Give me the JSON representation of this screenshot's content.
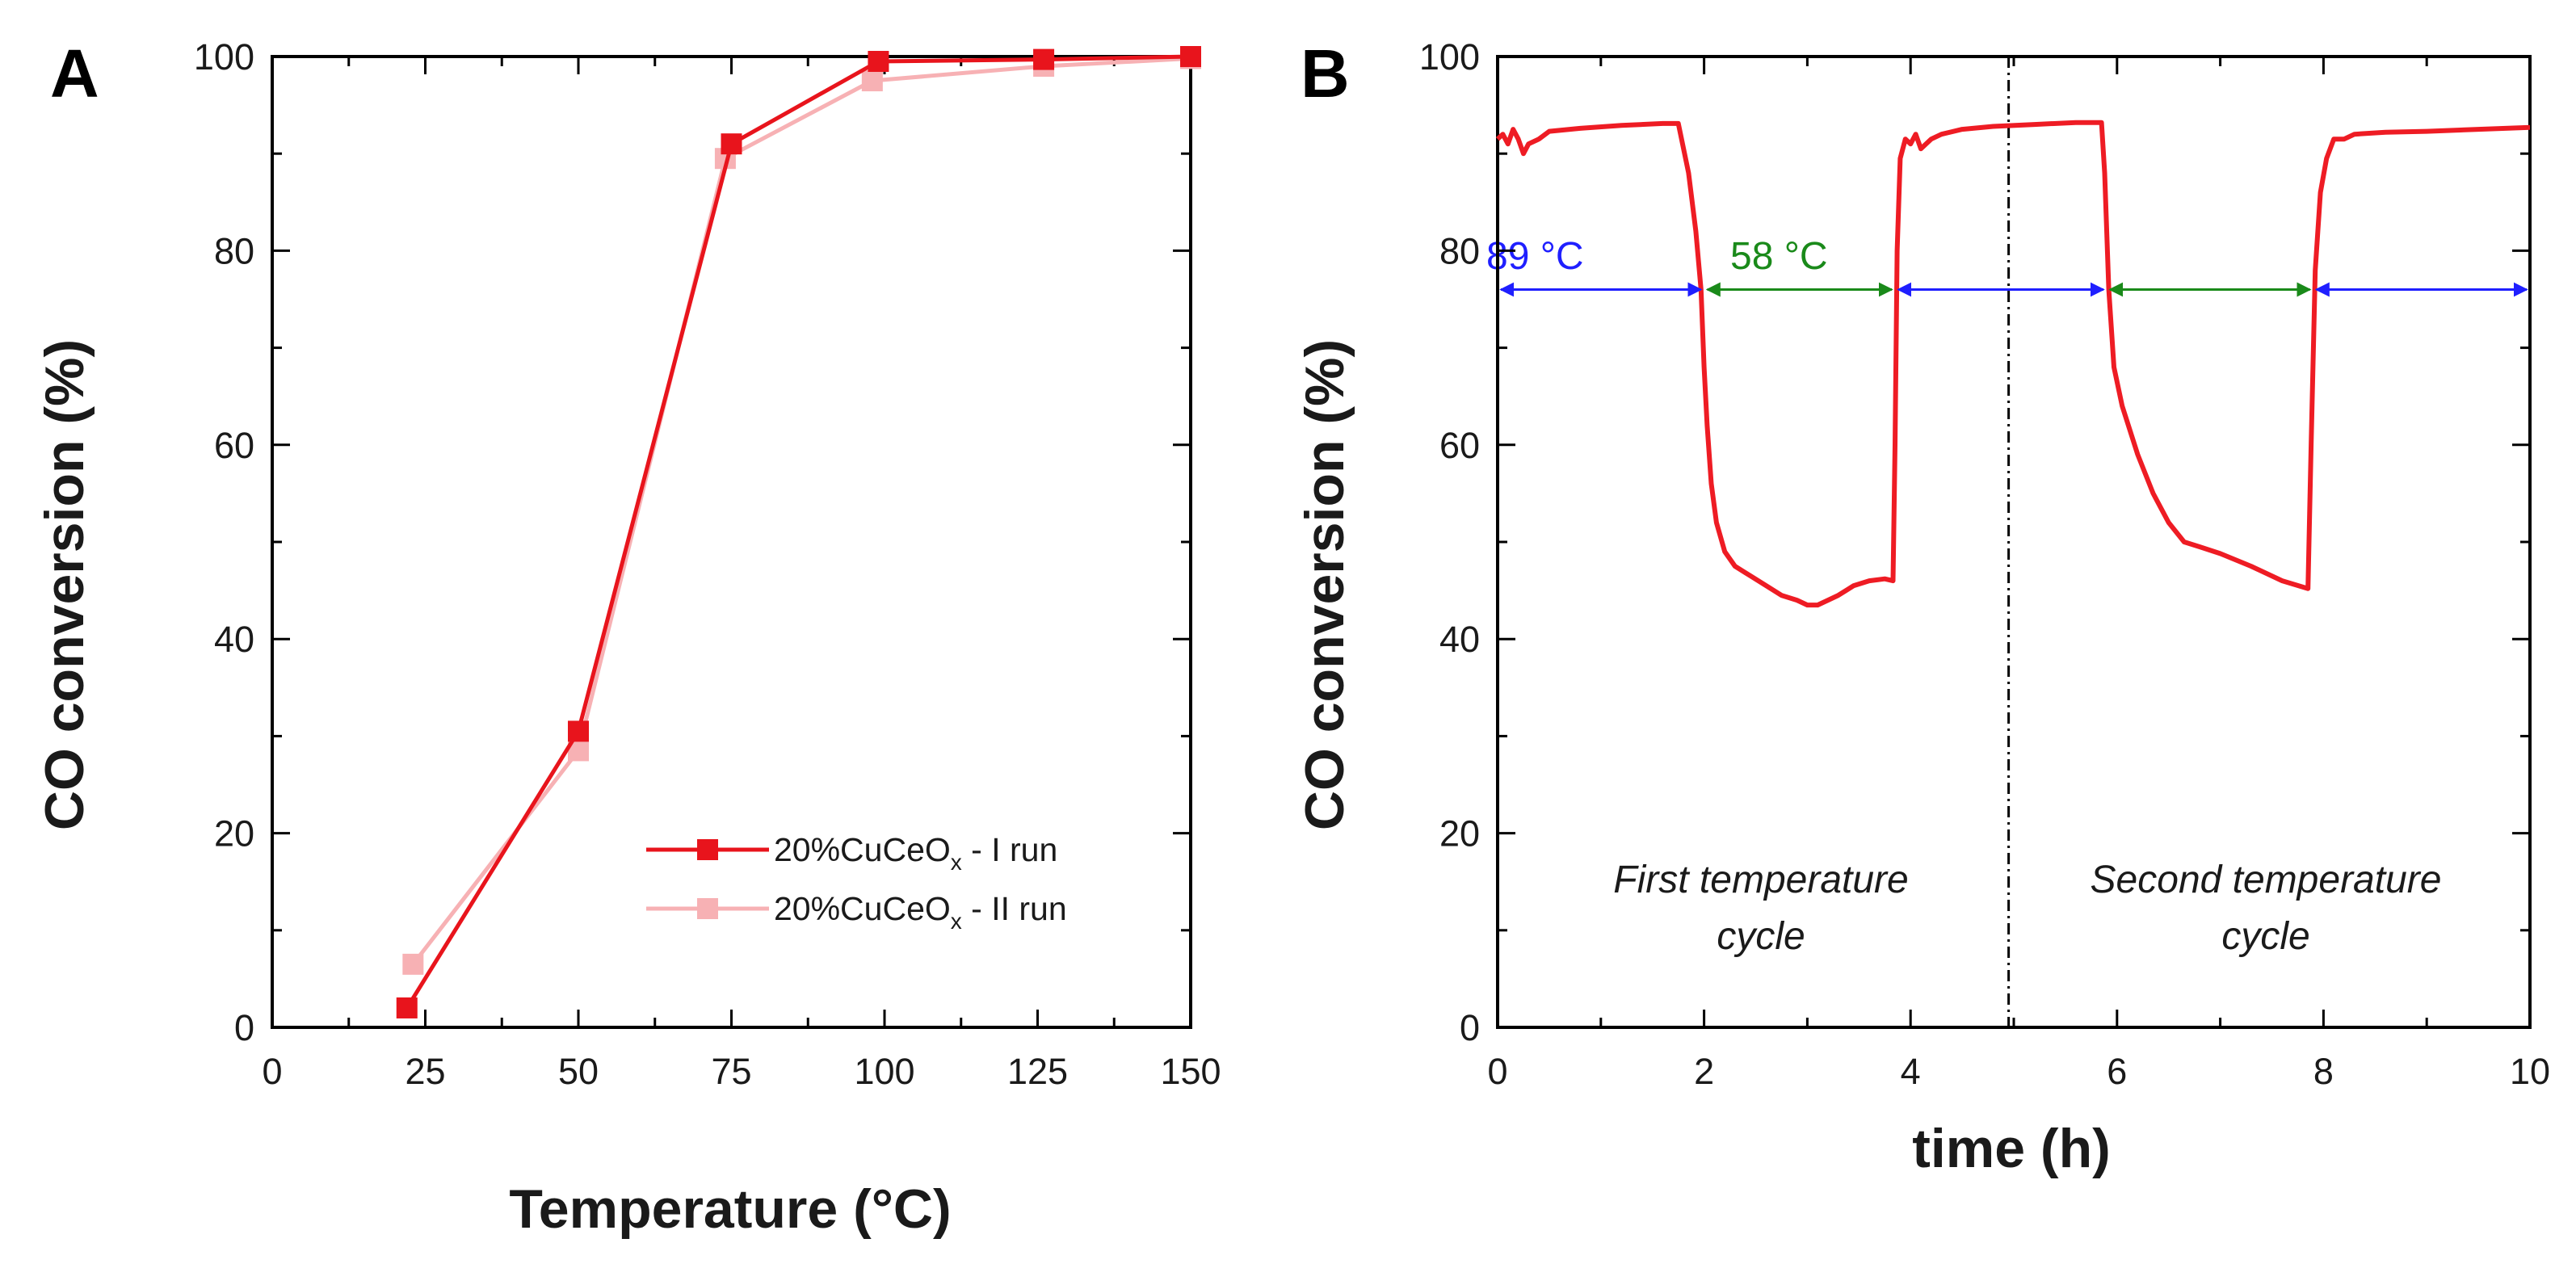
{
  "chart_data": [
    {
      "panel": "A",
      "type": "line",
      "xlabel": "Temperature (°C)",
      "ylabel": "CO conversion (%)",
      "xlim": [
        0,
        150
      ],
      "ylim": [
        0,
        100
      ],
      "xticks": [
        0,
        25,
        50,
        75,
        100,
        125,
        150
      ],
      "yticks": [
        0,
        20,
        40,
        60,
        80,
        100
      ],
      "grid": false,
      "legend_position": "bottom-right",
      "series": [
        {
          "name": "20%CuCeO",
          "name_subscript": "x",
          "name_suffix": " - I run",
          "color": "#e8141c",
          "marker": "square",
          "x": [
            22,
            50,
            75,
            99,
            126,
            150
          ],
          "y": [
            2,
            30.5,
            91,
            99.5,
            99.7,
            100
          ]
        },
        {
          "name": "20%CuCeO",
          "name_subscript": "x",
          "name_suffix": " - II run",
          "color": "#f7b1b4",
          "marker": "square",
          "x": [
            23,
            50,
            74,
            98,
            126,
            150
          ],
          "y": [
            6.5,
            28.5,
            89.5,
            97.5,
            99,
            99.8
          ]
        }
      ]
    },
    {
      "panel": "B",
      "type": "line",
      "xlabel": "time (h)",
      "ylabel": "CO conversion (%)",
      "xlim": [
        0,
        10
      ],
      "ylim": [
        0,
        100
      ],
      "xticks": [
        0,
        2,
        4,
        6,
        8,
        10
      ],
      "yticks": [
        0,
        20,
        40,
        60,
        80,
        100
      ],
      "grid": false,
      "series": [
        {
          "color": "#ee1c24",
          "x": [
            0,
            0.05,
            0.1,
            0.15,
            0.2,
            0.25,
            0.3,
            0.4,
            0.5,
            0.8,
            1.2,
            1.6,
            1.75,
            1.85,
            1.92,
            1.97,
            2.0,
            2.03,
            2.07,
            2.12,
            2.2,
            2.3,
            2.45,
            2.6,
            2.75,
            2.9,
            3.0,
            3.1,
            3.2,
            3.3,
            3.45,
            3.6,
            3.75,
            3.83,
            3.85,
            3.87,
            3.9,
            3.95,
            4.0,
            4.05,
            4.1,
            4.2,
            4.3,
            4.5,
            4.8,
            5.2,
            5.6,
            5.85,
            5.88,
            5.92,
            5.97,
            6.05,
            6.2,
            6.35,
            6.5,
            6.65,
            6.8,
            7.0,
            7.3,
            7.6,
            7.85,
            7.88,
            7.92,
            7.97,
            8.03,
            8.1,
            8.2,
            8.3,
            8.6,
            9.0,
            9.5,
            10.0
          ],
          "y": [
            91.5,
            92,
            91,
            92.5,
            91.5,
            90,
            91,
            91.5,
            92.3,
            92.6,
            92.9,
            93.1,
            93.1,
            88,
            82,
            76,
            68,
            62,
            56,
            52,
            49,
            47.5,
            46.5,
            45.5,
            44.5,
            44,
            43.5,
            43.5,
            44,
            44.5,
            45.5,
            46,
            46.2,
            46,
            60,
            80,
            89.5,
            91.5,
            91,
            92,
            90.5,
            91.5,
            92,
            92.5,
            92.8,
            93,
            93.2,
            93.2,
            88,
            76,
            68,
            64,
            59,
            55,
            52,
            50,
            49.5,
            48.8,
            47.5,
            46,
            45.2,
            60,
            78,
            86,
            89.5,
            91.5,
            91.5,
            92,
            92.2,
            92.3,
            92.5,
            92.7
          ]
        }
      ],
      "annotations": {
        "temp_high": "89 °C",
        "temp_low": "58 °C",
        "cycle_1": [
          "First temperature",
          "cycle"
        ],
        "cycle_2": [
          "Second temperature",
          "cycle"
        ]
      },
      "colors": {
        "high_temp_arrow": "#1f1fff",
        "low_temp_arrow": "#1a8a1a"
      },
      "interval_arrows": [
        {
          "from": 0,
          "to": 2,
          "y": 76,
          "kind": "high"
        },
        {
          "from": 2,
          "to": 3.85,
          "y": 76,
          "kind": "low"
        },
        {
          "from": 3.85,
          "to": 5.9,
          "y": 76,
          "kind": "high"
        },
        {
          "from": 5.9,
          "to": 7.9,
          "y": 76,
          "kind": "low"
        },
        {
          "from": 7.9,
          "to": 10,
          "y": 76,
          "kind": "high"
        }
      ],
      "divider_x": 4.95
    }
  ]
}
